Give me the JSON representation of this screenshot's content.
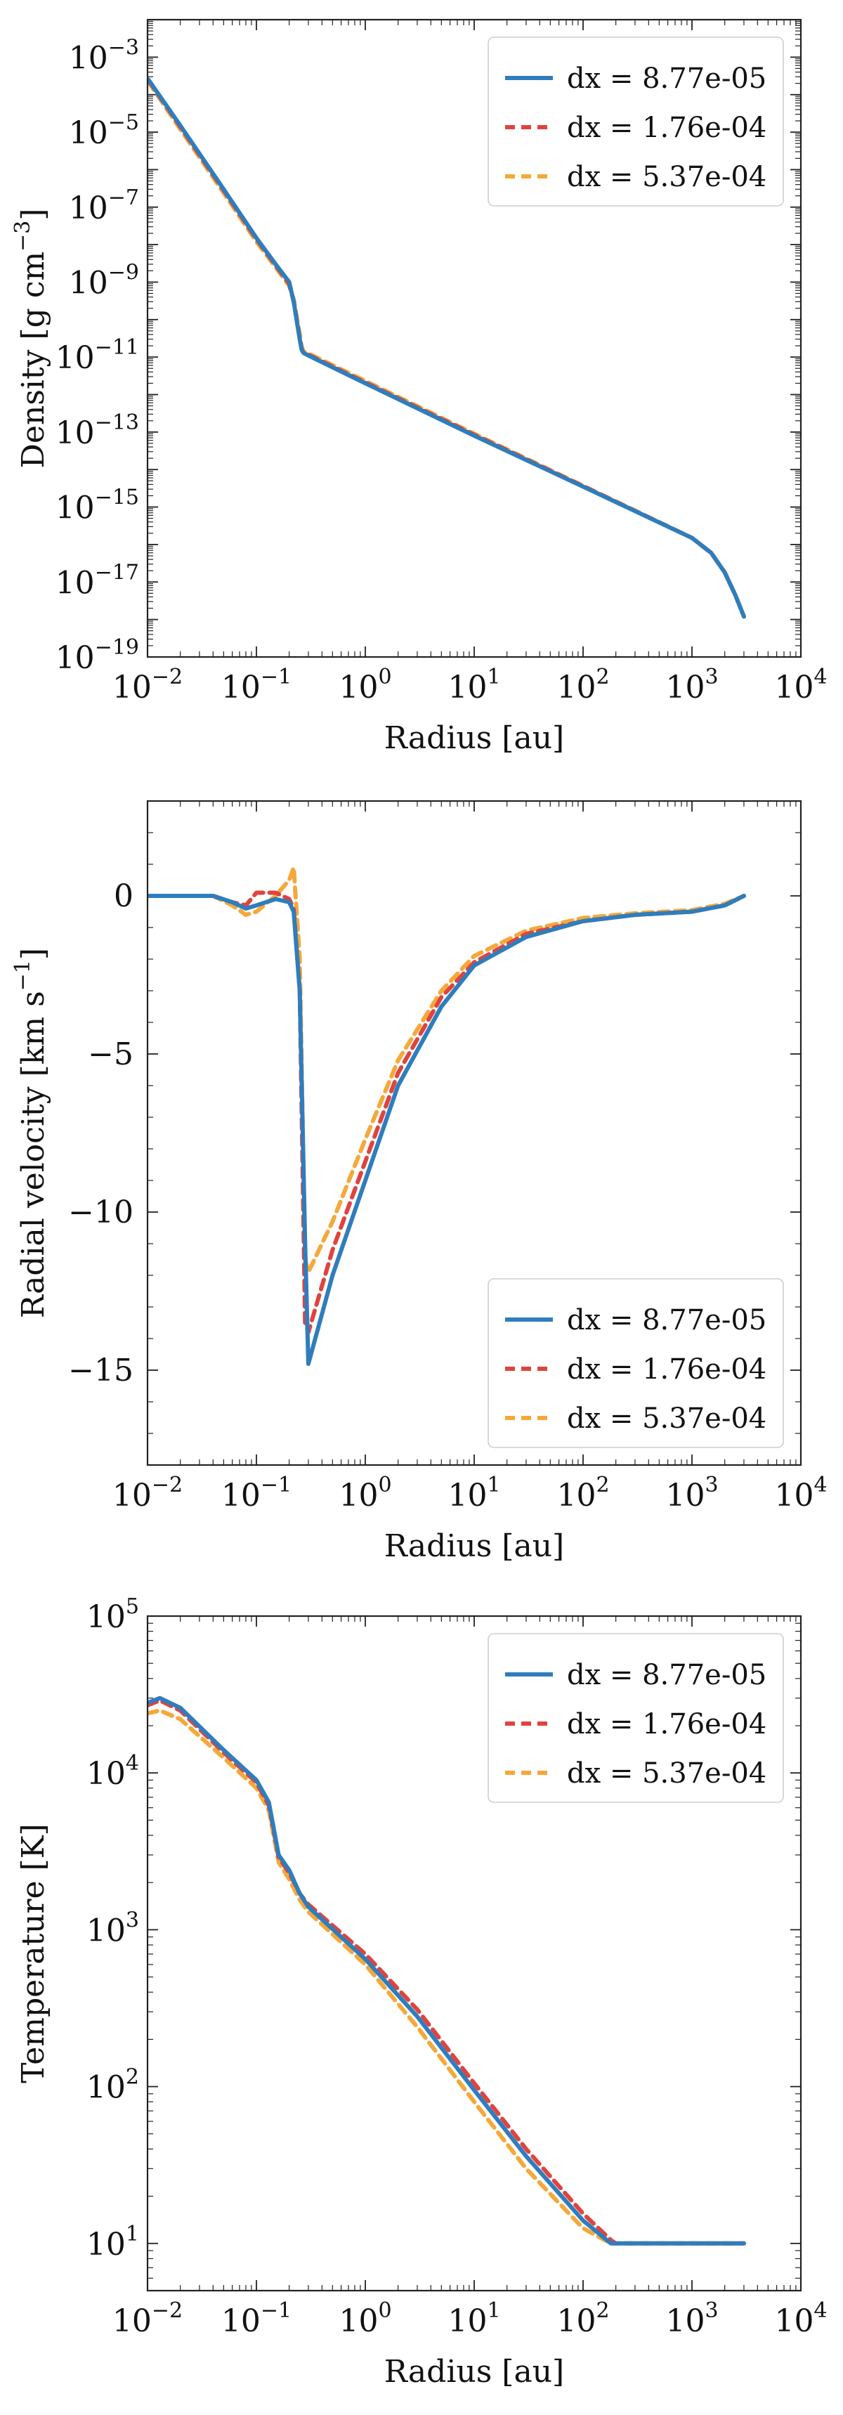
{
  "chart_data": [
    {
      "type": "line",
      "id": "density",
      "xlabel": "Radius [au]",
      "ylabel": "Density [g cm",
      "ylabel_sup": "−3",
      "ylabel_tail": "]",
      "xscale": "log",
      "yscale": "log",
      "xlim": [
        0.01,
        10000
      ],
      "ylim": [
        1e-19,
        0.01
      ],
      "x_ticks": [
        {
          "base": "10",
          "exp": "−2"
        },
        {
          "base": "10",
          "exp": "−1"
        },
        {
          "base": "10",
          "exp": "0"
        },
        {
          "base": "10",
          "exp": "1"
        },
        {
          "base": "10",
          "exp": "2"
        },
        {
          "base": "10",
          "exp": "3"
        },
        {
          "base": "10",
          "exp": "4"
        }
      ],
      "y_ticks": [
        {
          "base": "10",
          "exp": "−19"
        },
        {
          "base": "10",
          "exp": "−17"
        },
        {
          "base": "10",
          "exp": "−15"
        },
        {
          "base": "10",
          "exp": "−13"
        },
        {
          "base": "10",
          "exp": "−11"
        },
        {
          "base": "10",
          "exp": "−9"
        },
        {
          "base": "10",
          "exp": "−7"
        },
        {
          "base": "10",
          "exp": "−5"
        },
        {
          "base": "10",
          "exp": "−3"
        }
      ],
      "legend_position": "top-right",
      "series": [
        {
          "name": "dx = 8.77e-05",
          "color": "#2f7dbd",
          "dash": "solid",
          "x": [
            0.0102,
            0.02,
            0.05,
            0.1,
            0.15,
            0.2,
            0.22,
            0.25,
            0.26,
            0.27,
            0.3,
            1,
            10,
            100,
            1000,
            1500,
            2000,
            2500,
            3000
          ],
          "y": [
            0.00025,
            1.5e-05,
            3e-07,
            1.5e-08,
            3e-09,
            1e-09,
            3e-10,
            3e-11,
            1.6e-11,
            1.3e-11,
            1.1e-11,
            2e-12,
            8e-14,
            3.5e-15,
            1.5e-16,
            6e-17,
            1.8e-17,
            4.5e-18,
            1.2e-18
          ]
        },
        {
          "name": "dx = 1.76e-04",
          "color": "#e0433e",
          "dash": "dashed",
          "x": [
            0.0102,
            0.02,
            0.05,
            0.1,
            0.15,
            0.2,
            0.22,
            0.25,
            0.26,
            0.27,
            0.3,
            1,
            10,
            100,
            1000,
            1500,
            2000,
            2500,
            3000
          ],
          "y": [
            0.00024,
            1.4e-05,
            2.8e-07,
            1.4e-08,
            2.8e-09,
            9e-10,
            3e-10,
            3.2e-11,
            1.7e-11,
            1.3e-11,
            1.15e-11,
            2.1e-12,
            8.5e-14,
            3.6e-15,
            1.5e-16,
            6e-17,
            1.8e-17,
            4.5e-18,
            1.2e-18
          ]
        },
        {
          "name": "dx = 5.37e-04",
          "color": "#f5a83a",
          "dash": "dashed",
          "x": [
            0.0102,
            0.02,
            0.05,
            0.1,
            0.15,
            0.2,
            0.22,
            0.25,
            0.26,
            0.27,
            0.3,
            1,
            10,
            100,
            1000,
            1500,
            2000,
            2500,
            3000
          ],
          "y": [
            0.00022,
            1.2e-05,
            2.4e-07,
            1.2e-08,
            2.5e-09,
            8e-10,
            3.5e-10,
            4e-11,
            1.9e-11,
            1.4e-11,
            1.25e-11,
            2.3e-12,
            9e-14,
            3.7e-15,
            1.5e-16,
            6e-17,
            1.8e-17,
            4.5e-18,
            1.2e-18
          ]
        }
      ]
    },
    {
      "type": "line",
      "id": "velocity",
      "xlabel": "Radius [au]",
      "ylabel": "Radial velocity [km s",
      "ylabel_sup": "−1",
      "ylabel_tail": "]",
      "xscale": "log",
      "yscale": "linear",
      "xlim": [
        0.01,
        10000
      ],
      "ylim": [
        -18,
        3
      ],
      "x_ticks": [
        {
          "base": "10",
          "exp": "−2"
        },
        {
          "base": "10",
          "exp": "−1"
        },
        {
          "base": "10",
          "exp": "0"
        },
        {
          "base": "10",
          "exp": "1"
        },
        {
          "base": "10",
          "exp": "2"
        },
        {
          "base": "10",
          "exp": "3"
        },
        {
          "base": "10",
          "exp": "4"
        }
      ],
      "y_ticks": [
        {
          "value": -15,
          "label": "−15"
        },
        {
          "value": -10,
          "label": "−10"
        },
        {
          "value": -5,
          "label": "−5"
        },
        {
          "value": 0,
          "label": "0"
        }
      ],
      "legend_position": "bottom-right",
      "series": [
        {
          "name": "dx = 8.77e-05",
          "color": "#2f7dbd",
          "dash": "solid",
          "x": [
            0.01,
            0.04,
            0.06,
            0.08,
            0.1,
            0.15,
            0.2,
            0.22,
            0.25,
            0.28,
            0.3,
            0.5,
            1,
            2,
            5,
            10,
            30,
            100,
            300,
            1000,
            2000,
            3000
          ],
          "y": [
            0,
            0,
            -0.2,
            -0.4,
            -0.3,
            -0.1,
            -0.2,
            -0.5,
            -3,
            -11,
            -14.8,
            -12,
            -9,
            -6,
            -3.5,
            -2.2,
            -1.3,
            -0.8,
            -0.6,
            -0.5,
            -0.3,
            0
          ]
        },
        {
          "name": "dx = 1.76e-04",
          "color": "#e0433e",
          "dash": "dashed",
          "x": [
            0.01,
            0.04,
            0.06,
            0.08,
            0.1,
            0.15,
            0.2,
            0.22,
            0.25,
            0.28,
            0.3,
            0.5,
            1,
            2,
            5,
            10,
            30,
            100,
            300,
            1000,
            2000,
            3000
          ],
          "y": [
            0,
            0,
            -0.2,
            -0.3,
            0.1,
            0.1,
            -0.1,
            -0.4,
            -3,
            -13.5,
            -13.8,
            -11.2,
            -8.4,
            -5.6,
            -3.2,
            -2.1,
            -1.2,
            -0.8,
            -0.6,
            -0.5,
            -0.3,
            0
          ]
        },
        {
          "name": "dx = 5.37e-04",
          "color": "#f5a83a",
          "dash": "dashed",
          "x": [
            0.01,
            0.04,
            0.06,
            0.08,
            0.1,
            0.15,
            0.2,
            0.22,
            0.25,
            0.28,
            0.3,
            0.5,
            1,
            2,
            5,
            10,
            30,
            100,
            300,
            1000,
            2000,
            3000
          ],
          "y": [
            0,
            0,
            -0.3,
            -0.6,
            -0.5,
            0,
            0.5,
            0.9,
            -2,
            -11.5,
            -11.9,
            -10.3,
            -7.7,
            -5.2,
            -3,
            -1.9,
            -1.1,
            -0.7,
            -0.55,
            -0.45,
            -0.25,
            0
          ]
        }
      ]
    },
    {
      "type": "line",
      "id": "temperature",
      "xlabel": "Radius [au]",
      "ylabel": "Temperature [K]",
      "ylabel_sup": "",
      "ylabel_tail": "",
      "xscale": "log",
      "yscale": "log",
      "xlim": [
        0.01,
        10000
      ],
      "ylim": [
        5,
        100000
      ],
      "x_ticks": [
        {
          "base": "10",
          "exp": "−2"
        },
        {
          "base": "10",
          "exp": "−1"
        },
        {
          "base": "10",
          "exp": "0"
        },
        {
          "base": "10",
          "exp": "1"
        },
        {
          "base": "10",
          "exp": "2"
        },
        {
          "base": "10",
          "exp": "3"
        },
        {
          "base": "10",
          "exp": "4"
        }
      ],
      "y_ticks": [
        {
          "base": "10",
          "exp": "1"
        },
        {
          "base": "10",
          "exp": "2"
        },
        {
          "base": "10",
          "exp": "3"
        },
        {
          "base": "10",
          "exp": "4"
        },
        {
          "base": "10",
          "exp": "5"
        }
      ],
      "legend_position": "top-right",
      "series": [
        {
          "name": "dx = 8.77e-05",
          "color": "#2f7dbd",
          "dash": "solid",
          "x": [
            0.01,
            0.013,
            0.02,
            0.05,
            0.1,
            0.13,
            0.16,
            0.2,
            0.25,
            0.3,
            1,
            3,
            10,
            30,
            100,
            180,
            200,
            1000,
            3000
          ],
          "y": [
            28000,
            30000,
            26000,
            14000,
            9000,
            6500,
            3000,
            2400,
            1700,
            1400,
            650,
            280,
            95,
            36,
            14,
            10,
            10,
            10,
            10
          ]
        },
        {
          "name": "dx = 1.76e-04",
          "color": "#e0433e",
          "dash": "dashed",
          "x": [
            0.01,
            0.013,
            0.02,
            0.05,
            0.1,
            0.13,
            0.16,
            0.2,
            0.25,
            0.3,
            1,
            3,
            10,
            30,
            100,
            180,
            200,
            1000,
            3000
          ],
          "y": [
            27000,
            29000,
            25000,
            13500,
            8700,
            6200,
            2900,
            2300,
            1700,
            1450,
            700,
            310,
            105,
            40,
            15.5,
            10.5,
            10,
            10,
            10
          ]
        },
        {
          "name": "dx = 5.37e-04",
          "color": "#f5a83a",
          "dash": "dashed",
          "x": [
            0.01,
            0.013,
            0.02,
            0.05,
            0.1,
            0.13,
            0.16,
            0.2,
            0.25,
            0.3,
            1,
            3,
            10,
            30,
            100,
            180,
            200,
            1000,
            3000
          ],
          "y": [
            24000,
            25000,
            22000,
            12500,
            8000,
            5800,
            2700,
            2100,
            1550,
            1300,
            600,
            240,
            80,
            30,
            12.5,
            10,
            10,
            10,
            10
          ]
        }
      ]
    }
  ]
}
